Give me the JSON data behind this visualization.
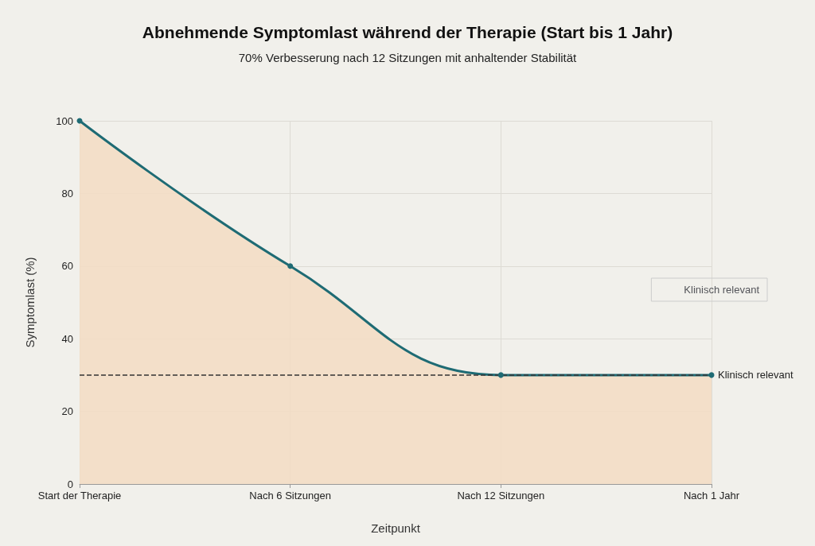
{
  "chart_data": {
    "type": "area",
    "title": "Abnehmende Symptomlast während der Therapie (Start bis 1 Jahr)",
    "subtitle": "70% Verbesserung nach 12 Sitzungen mit anhaltender Stabilität",
    "xlabel": "Zeitpunkt",
    "ylabel": "Symptomlast (%)",
    "categories": [
      "Start der Therapie",
      "Nach 6 Sitzungen",
      "Nach 12 Sitzungen",
      "Nach 1 Jahr"
    ],
    "series": [
      {
        "color": "#1e6b74",
        "values": [
          100,
          60,
          30,
          30
        ]
      }
    ],
    "ylim": [
      0,
      100
    ],
    "yticks": [
      0,
      20,
      40,
      60,
      80,
      100
    ],
    "ref_lines": [
      {
        "axis": "y",
        "value": 30,
        "label": "Klinisch relevant",
        "color": "#333333",
        "line_style": "dashed"
      }
    ],
    "grid": true,
    "legend": "right",
    "marker": "circle",
    "line_style": "solid"
  }
}
